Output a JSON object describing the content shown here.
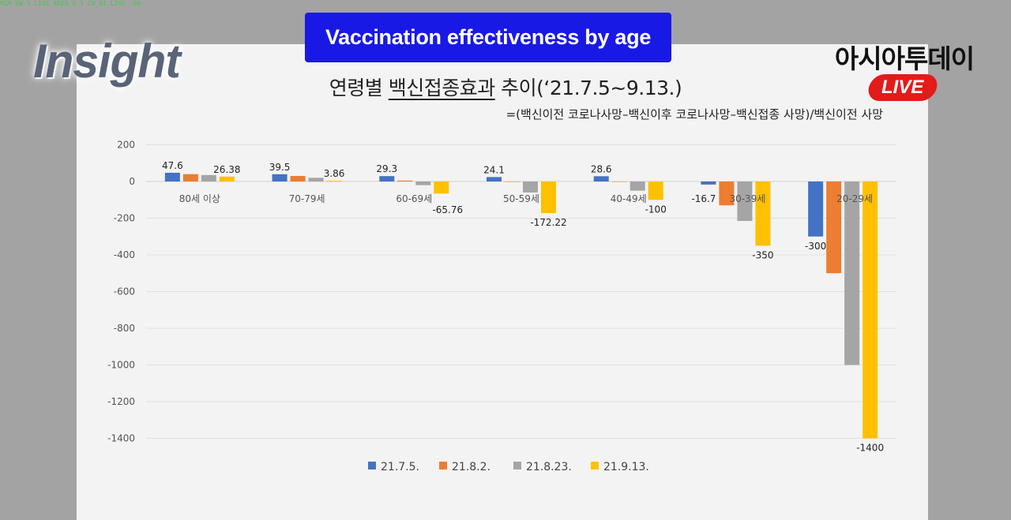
{
  "overlay": {
    "top_strip": "PGM  SW 1 LIVE  AREA 0 1 CH 01 LIVE  :00",
    "banner": "Vaccination effectiveness by age",
    "brand_left": "Insight",
    "brand_right": "아시아투데이",
    "live_badge": "LIVE"
  },
  "colors": {
    "series": [
      "#4472c4",
      "#ed7d31",
      "#a5a5a5",
      "#ffc000"
    ],
    "banner_bg": "#1919e6",
    "live_bg": "#e31b1b"
  },
  "chart_data": {
    "type": "bar",
    "title_prefix": "연령별 ",
    "title_underlined": "백신접종효과",
    "title_suffix": " 추이(‘21.7.5~9.13.)",
    "subtitle": "=(백신이전 코로나사망–백신이후 코로나사망–백신접종 사망)/백신이전 사망",
    "categories": [
      "80세 이상",
      "70-79세",
      "60-69세",
      "50-59세",
      "40-49세",
      "30-39세",
      "20-29세"
    ],
    "series": [
      {
        "name": "21.7.5.",
        "values": [
          47.6,
          39.5,
          29.3,
          24.1,
          28.6,
          -16.7,
          -300
        ]
      },
      {
        "name": "21.8.2.",
        "values": [
          40,
          30,
          5,
          0,
          0,
          -130,
          -500
        ]
      },
      {
        "name": "21.8.23.",
        "values": [
          35,
          20,
          -20,
          -60,
          -50,
          -215,
          -1000
        ]
      },
      {
        "name": "21.9.13.",
        "values": [
          26.38,
          3.86,
          -65.76,
          -172.22,
          -100,
          -350,
          -1400
        ]
      }
    ],
    "data_labels": [
      {
        "series": 0,
        "index": 0,
        "text": "47.6"
      },
      {
        "series": 3,
        "index": 0,
        "text": "26.38"
      },
      {
        "series": 0,
        "index": 1,
        "text": "39.5"
      },
      {
        "series": 3,
        "index": 1,
        "text": "3.86"
      },
      {
        "series": 0,
        "index": 2,
        "text": "29.3"
      },
      {
        "series": 3,
        "index": 2,
        "text": "-65.76"
      },
      {
        "series": 0,
        "index": 3,
        "text": "24.1"
      },
      {
        "series": 3,
        "index": 3,
        "text": "-172.22"
      },
      {
        "series": 0,
        "index": 4,
        "text": "28.6"
      },
      {
        "series": 3,
        "index": 4,
        "text": "-100"
      },
      {
        "series": 0,
        "index": 5,
        "text": "-16.7"
      },
      {
        "series": 3,
        "index": 5,
        "text": "-350"
      },
      {
        "series": 0,
        "index": 6,
        "text": "-300"
      },
      {
        "series": 3,
        "index": 6,
        "text": "-1400"
      }
    ],
    "yticks": [
      200,
      0,
      -200,
      -400,
      -600,
      -800,
      -1000,
      -1200,
      -1400
    ],
    "ylim": [
      -1400,
      200
    ],
    "grid": true,
    "legend_position": "bottom"
  }
}
